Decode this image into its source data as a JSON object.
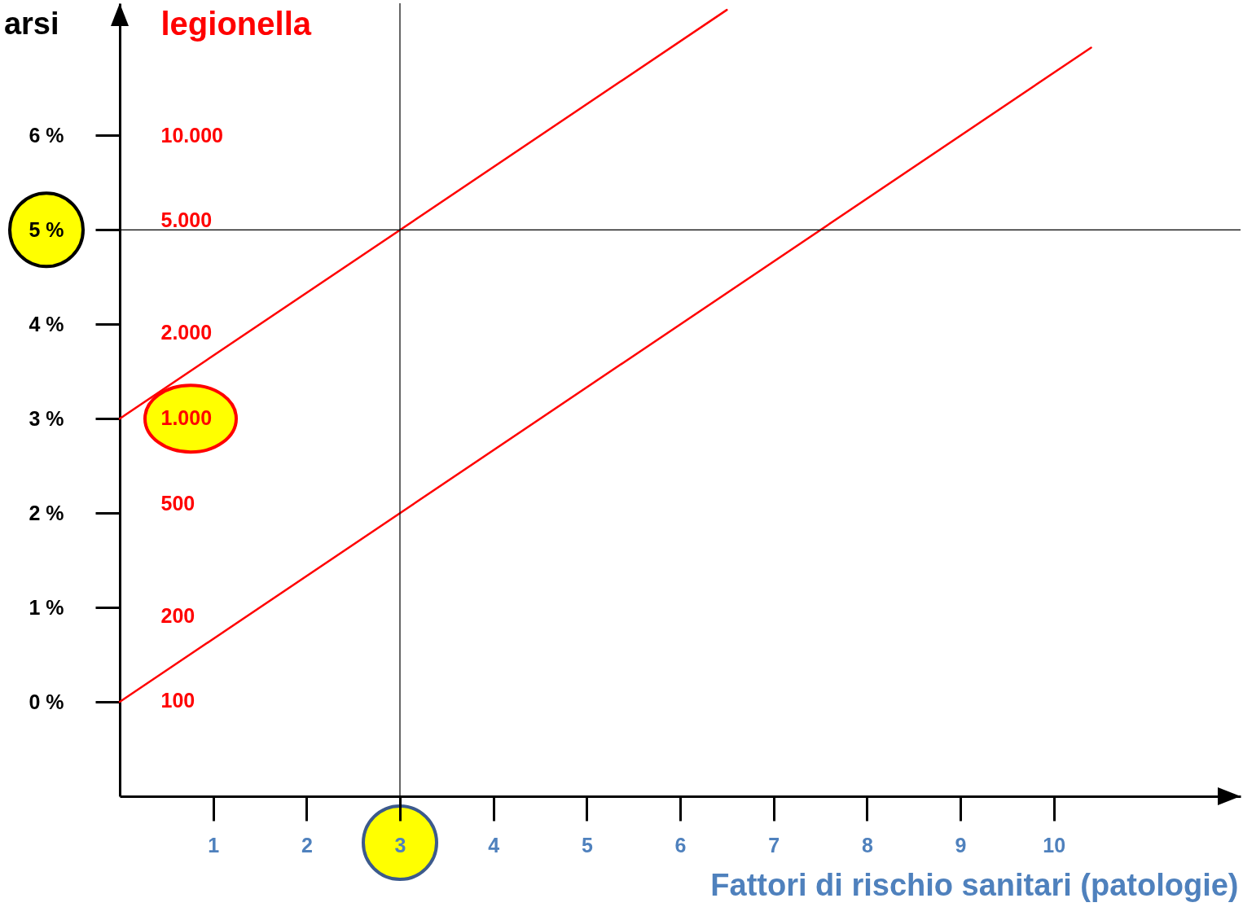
{
  "chart_data": {
    "type": "line",
    "ylabel": "arsi",
    "y2label": "legionella",
    "xlabel": "Fattori di rischio sanitari (patologie)",
    "xlim": [
      0,
      12
    ],
    "xticks": [
      1,
      2,
      3,
      4,
      5,
      6,
      7,
      8,
      9,
      10
    ],
    "ylim": [
      -1,
      7.4
    ],
    "yticks": [
      {
        "value": 0,
        "label": "0 %"
      },
      {
        "value": 1,
        "label": "1 %"
      },
      {
        "value": 2,
        "label": "2 %"
      },
      {
        "value": 3,
        "label": "3 %"
      },
      {
        "value": 4,
        "label": "4 %"
      },
      {
        "value": 5,
        "label": "5 %"
      },
      {
        "value": 6,
        "label": "6 %"
      }
    ],
    "y2lim": [
      46,
      29300
    ],
    "log": "y2",
    "y2ticks": [
      {
        "value": 100,
        "label": "100"
      },
      {
        "value": 200,
        "label": "200"
      },
      {
        "value": 500,
        "label": "500"
      },
      {
        "value": 1000,
        "label": "1.000"
      },
      {
        "value": 2000,
        "label": "2.000"
      },
      {
        "value": 5000,
        "label": "5.000"
      },
      {
        "value": 10000,
        "label": "10.000"
      }
    ],
    "series": [
      {
        "color": "#ff0000",
        "x": [
          0,
          6.5
        ],
        "values": [
          3,
          7.33
        ]
      },
      {
        "color": "#ff0000",
        "x": [
          0,
          10.4
        ],
        "values": [
          0,
          6.93
        ]
      }
    ],
    "ref_lines": [
      {
        "axis": "x",
        "value": 3,
        "color": "#000000"
      },
      {
        "axis": "y",
        "value": 5,
        "color": "#000000"
      }
    ],
    "grid": false
  }
}
